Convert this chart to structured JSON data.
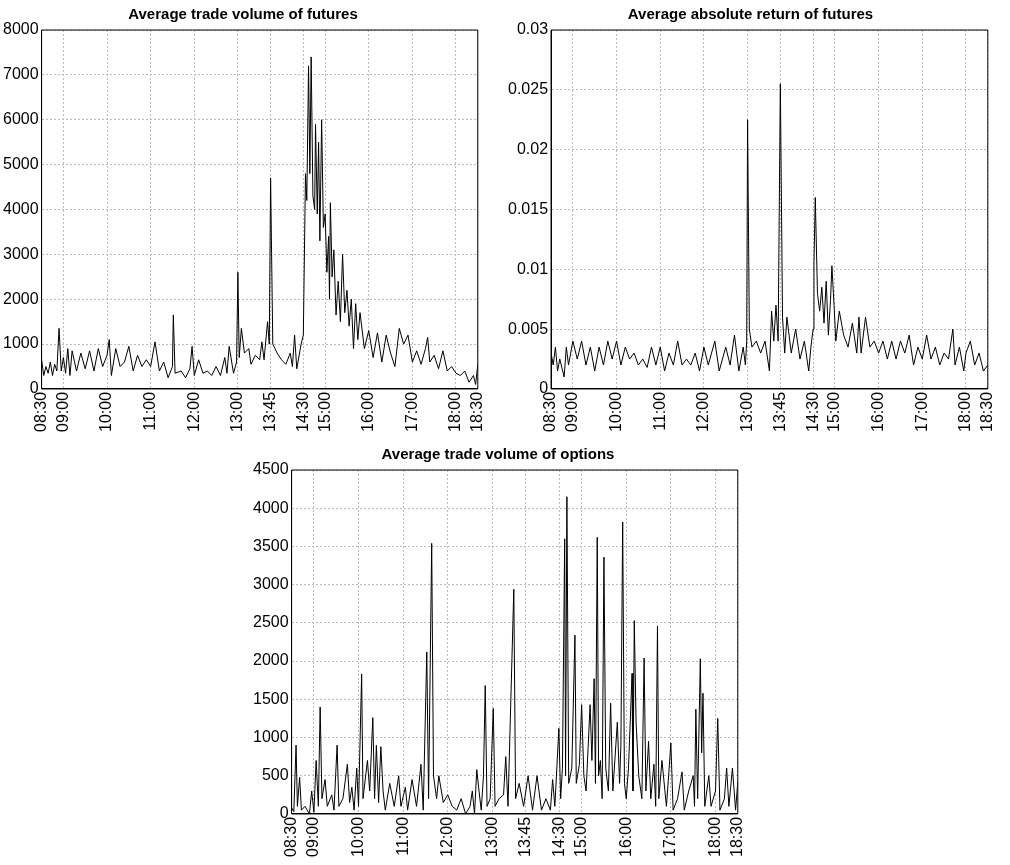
{
  "chart_data": [
    {
      "type": "line",
      "title": "Average trade volume of futures",
      "color": "#000000",
      "grid": true,
      "legend": false,
      "marker": "none",
      "line_style": "solid",
      "xlim": [
        8.5,
        18.5
      ],
      "ylim": [
        0,
        8000
      ],
      "yticks": [
        0,
        1000,
        2000,
        3000,
        4000,
        5000,
        6000,
        7000,
        8000
      ],
      "xticks": [
        {
          "value": 8.5,
          "label": "08:30"
        },
        {
          "value": 9,
          "label": "09:00"
        },
        {
          "value": 10,
          "label": "10:00"
        },
        {
          "value": 11,
          "label": "11:00"
        },
        {
          "value": 12,
          "label": "12:00"
        },
        {
          "value": 13,
          "label": "13:00"
        },
        {
          "value": 13.75,
          "label": "13:45"
        },
        {
          "value": 14.5,
          "label": "14:30"
        },
        {
          "value": 15,
          "label": "15:00"
        },
        {
          "value": 16,
          "label": "16:00"
        },
        {
          "value": 17,
          "label": "17:00"
        },
        {
          "value": 18,
          "label": "18:00"
        },
        {
          "value": 18.5,
          "label": "18:30"
        }
      ],
      "x": [
        8.5,
        8.55,
        8.6,
        8.65,
        8.7,
        8.75,
        8.8,
        8.85,
        8.9,
        8.95,
        9.0,
        9.05,
        9.1,
        9.15,
        9.2,
        9.3,
        9.4,
        9.5,
        9.6,
        9.7,
        9.8,
        9.9,
        10.0,
        10.05,
        10.1,
        10.2,
        10.3,
        10.4,
        10.5,
        10.6,
        10.7,
        10.8,
        10.9,
        11.0,
        11.1,
        11.2,
        11.3,
        11.4,
        11.5,
        11.52,
        11.56,
        11.7,
        11.8,
        11.9,
        11.95,
        12.0,
        12.1,
        12.2,
        12.3,
        12.4,
        12.5,
        12.6,
        12.7,
        12.75,
        12.8,
        12.9,
        12.97,
        13.0,
        13.03,
        13.08,
        13.15,
        13.25,
        13.3,
        13.4,
        13.5,
        13.55,
        13.6,
        13.68,
        13.72,
        13.75,
        13.8,
        13.9,
        14.0,
        14.1,
        14.2,
        14.25,
        14.3,
        14.35,
        14.45,
        14.5,
        14.55,
        14.58,
        14.62,
        14.65,
        14.68,
        14.72,
        14.76,
        14.78,
        14.82,
        14.85,
        14.88,
        14.92,
        14.96,
        15.0,
        15.04,
        15.08,
        15.1,
        15.12,
        15.16,
        15.2,
        15.25,
        15.3,
        15.35,
        15.4,
        15.45,
        15.5,
        15.55,
        15.6,
        15.65,
        15.7,
        15.75,
        15.8,
        15.9,
        16.0,
        16.1,
        16.2,
        16.3,
        16.4,
        16.5,
        16.6,
        16.7,
        16.8,
        16.9,
        17.0,
        17.1,
        17.2,
        17.3,
        17.35,
        17.4,
        17.5,
        17.6,
        17.7,
        17.8,
        17.9,
        18.0,
        18.1,
        18.2,
        18.3,
        18.4,
        18.45,
        18.5
      ],
      "values": [
        650,
        300,
        500,
        350,
        600,
        300,
        550,
        400,
        1350,
        400,
        700,
        350,
        900,
        300,
        850,
        400,
        800,
        450,
        850,
        400,
        900,
        500,
        750,
        1100,
        300,
        900,
        500,
        600,
        950,
        400,
        750,
        500,
        650,
        500,
        1050,
        400,
        600,
        250,
        500,
        1650,
        350,
        400,
        250,
        450,
        950,
        300,
        650,
        350,
        400,
        300,
        500,
        300,
        700,
        350,
        950,
        350,
        600,
        2600,
        700,
        1350,
        800,
        900,
        550,
        750,
        650,
        1050,
        650,
        1500,
        1000,
        4700,
        1000,
        800,
        650,
        550,
        800,
        500,
        1200,
        450,
        1000,
        1200,
        4800,
        4200,
        7200,
        4800,
        7400,
        4300,
        4000,
        5900,
        3900,
        5500,
        3300,
        6000,
        3600,
        3900,
        2600,
        3400,
        2000,
        4150,
        2500,
        3100,
        1650,
        2400,
        1500,
        3000,
        1700,
        2200,
        1400,
        2000,
        900,
        1900,
        1100,
        1700,
        900,
        1300,
        700,
        1250,
        600,
        1200,
        800,
        500,
        1350,
        1000,
        1200,
        600,
        850,
        550,
        900,
        1150,
        600,
        750,
        450,
        850,
        400,
        500,
        350,
        300,
        400,
        150,
        300,
        100,
        550
      ]
    },
    {
      "type": "line",
      "title": "Average absolute return of futures",
      "color": "#000000",
      "grid": true,
      "legend": false,
      "marker": "none",
      "line_style": "solid",
      "xlim": [
        8.5,
        18.5
      ],
      "ylim": [
        0,
        0.03
      ],
      "yticks": [
        0,
        0.005,
        0.01,
        0.015,
        0.02,
        0.025,
        0.03
      ],
      "xticks": [
        {
          "value": 8.5,
          "label": "08:30"
        },
        {
          "value": 9,
          "label": "09:00"
        },
        {
          "value": 10,
          "label": "10:00"
        },
        {
          "value": 11,
          "label": "11:00"
        },
        {
          "value": 12,
          "label": "12:00"
        },
        {
          "value": 13,
          "label": "13:00"
        },
        {
          "value": 13.75,
          "label": "13:45"
        },
        {
          "value": 14.5,
          "label": "14:30"
        },
        {
          "value": 15,
          "label": "15:00"
        },
        {
          "value": 16,
          "label": "16:00"
        },
        {
          "value": 17,
          "label": "17:00"
        },
        {
          "value": 18,
          "label": "18:00"
        },
        {
          "value": 18.5,
          "label": "18:30"
        }
      ],
      "x": [
        8.5,
        8.55,
        8.6,
        8.65,
        8.7,
        8.8,
        8.85,
        8.9,
        9.0,
        9.1,
        9.2,
        9.3,
        9.4,
        9.5,
        9.6,
        9.7,
        9.8,
        9.9,
        10.0,
        10.1,
        10.2,
        10.3,
        10.4,
        10.5,
        10.6,
        10.7,
        10.8,
        10.9,
        11.0,
        11.1,
        11.2,
        11.3,
        11.4,
        11.5,
        11.6,
        11.7,
        11.8,
        11.9,
        12.0,
        12.1,
        12.25,
        12.35,
        12.5,
        12.6,
        12.7,
        12.8,
        12.9,
        12.95,
        12.98,
        13.0,
        13.04,
        13.1,
        13.2,
        13.3,
        13.4,
        13.5,
        13.55,
        13.6,
        13.65,
        13.7,
        13.75,
        13.8,
        13.85,
        13.9,
        14.0,
        14.1,
        14.2,
        14.3,
        14.4,
        14.45,
        14.5,
        14.52,
        14.55,
        14.6,
        14.65,
        14.7,
        14.75,
        14.8,
        14.85,
        14.9,
        14.93,
        14.98,
        15.02,
        15.1,
        15.2,
        15.3,
        15.4,
        15.5,
        15.55,
        15.6,
        15.7,
        15.8,
        15.9,
        16.0,
        16.1,
        16.2,
        16.3,
        16.4,
        16.5,
        16.6,
        16.7,
        16.8,
        16.9,
        17.0,
        17.1,
        17.2,
        17.3,
        17.4,
        17.5,
        17.6,
        17.7,
        17.75,
        17.85,
        17.95,
        18.0,
        18.1,
        18.2,
        18.3,
        18.4,
        18.5
      ],
      "values": [
        0.003,
        0.002,
        0.0035,
        0.0015,
        0.0025,
        0.001,
        0.0035,
        0.002,
        0.004,
        0.0025,
        0.004,
        0.002,
        0.0035,
        0.0015,
        0.0035,
        0.002,
        0.004,
        0.0025,
        0.004,
        0.002,
        0.0035,
        0.0025,
        0.003,
        0.002,
        0.0025,
        0.0018,
        0.0035,
        0.002,
        0.0035,
        0.0015,
        0.003,
        0.002,
        0.004,
        0.002,
        0.0025,
        0.002,
        0.003,
        0.0015,
        0.0035,
        0.002,
        0.004,
        0.0015,
        0.0035,
        0.002,
        0.0045,
        0.0015,
        0.0035,
        0.002,
        0.004,
        0.0225,
        0.005,
        0.0035,
        0.004,
        0.003,
        0.004,
        0.0015,
        0.0065,
        0.004,
        0.007,
        0.004,
        0.0255,
        0.006,
        0.003,
        0.006,
        0.003,
        0.005,
        0.0025,
        0.004,
        0.0015,
        0.0035,
        0.005,
        0.0105,
        0.016,
        0.008,
        0.0065,
        0.0085,
        0.0055,
        0.009,
        0.0045,
        0.0075,
        0.0103,
        0.007,
        0.004,
        0.0065,
        0.0045,
        0.0035,
        0.0055,
        0.003,
        0.006,
        0.003,
        0.006,
        0.0035,
        0.004,
        0.003,
        0.004,
        0.0025,
        0.004,
        0.0025,
        0.004,
        0.003,
        0.0045,
        0.002,
        0.0035,
        0.0025,
        0.0045,
        0.0025,
        0.0035,
        0.002,
        0.003,
        0.0025,
        0.005,
        0.002,
        0.0035,
        0.0015,
        0.003,
        0.004,
        0.002,
        0.003,
        0.0015,
        0.002
      ]
    },
    {
      "type": "line",
      "title": "Average trade volume of options",
      "color": "#000000",
      "grid": true,
      "legend": false,
      "marker": "none",
      "line_style": "solid",
      "xlim": [
        8.5,
        18.5
      ],
      "ylim": [
        0,
        4500
      ],
      "yticks": [
        0,
        500,
        1000,
        1500,
        2000,
        2500,
        3000,
        3500,
        4000,
        4500
      ],
      "xticks": [
        {
          "value": 8.5,
          "label": "08:30"
        },
        {
          "value": 9,
          "label": "09:00"
        },
        {
          "value": 10,
          "label": "10:00"
        },
        {
          "value": 11,
          "label": "11:00"
        },
        {
          "value": 12,
          "label": "12:00"
        },
        {
          "value": 13,
          "label": "13:00"
        },
        {
          "value": 13.75,
          "label": "13:45"
        },
        {
          "value": 14.5,
          "label": "14:30"
        },
        {
          "value": 15,
          "label": "15:00"
        },
        {
          "value": 16,
          "label": "16:00"
        },
        {
          "value": 17,
          "label": "17:00"
        },
        {
          "value": 18,
          "label": "18:00"
        },
        {
          "value": 18.5,
          "label": "18:30"
        }
      ],
      "x": [
        8.5,
        8.55,
        8.6,
        8.63,
        8.68,
        8.72,
        8.8,
        8.9,
        8.95,
        9.0,
        9.05,
        9.1,
        9.14,
        9.18,
        9.25,
        9.3,
        9.4,
        9.45,
        9.52,
        9.56,
        9.65,
        9.75,
        9.8,
        9.85,
        9.9,
        9.96,
        10.0,
        10.07,
        10.1,
        10.2,
        10.25,
        10.32,
        10.36,
        10.4,
        10.45,
        10.5,
        10.55,
        10.6,
        10.7,
        10.8,
        10.9,
        10.95,
        11.05,
        11.1,
        11.2,
        11.3,
        11.4,
        11.45,
        11.53,
        11.57,
        11.64,
        11.68,
        11.75,
        11.8,
        11.9,
        12.0,
        12.1,
        12.2,
        12.3,
        12.4,
        12.5,
        12.55,
        12.6,
        12.65,
        12.7,
        12.75,
        12.8,
        12.84,
        12.88,
        12.95,
        13.02,
        13.06,
        13.15,
        13.25,
        13.3,
        13.35,
        13.48,
        13.52,
        13.6,
        13.7,
        13.8,
        13.9,
        14.0,
        14.1,
        14.2,
        14.3,
        14.35,
        14.4,
        14.49,
        14.53,
        14.57,
        14.62,
        14.64,
        14.67,
        14.71,
        14.78,
        14.85,
        14.88,
        14.95,
        15.0,
        15.05,
        15.1,
        15.19,
        15.23,
        15.28,
        15.31,
        15.35,
        15.38,
        15.42,
        15.46,
        15.5,
        15.54,
        15.6,
        15.65,
        15.7,
        15.8,
        15.85,
        15.88,
        15.92,
        15.96,
        16.0,
        16.05,
        16.13,
        16.15,
        16.18,
        16.22,
        16.28,
        16.35,
        16.4,
        16.44,
        16.5,
        16.55,
        16.62,
        16.66,
        16.7,
        16.73,
        16.8,
        16.9,
        16.95,
        17.0,
        17.05,
        17.15,
        17.25,
        17.3,
        17.4,
        17.5,
        17.53,
        17.56,
        17.6,
        17.66,
        17.69,
        17.72,
        17.76,
        17.85,
        17.9,
        18.0,
        18.05,
        18.1,
        18.2,
        18.25,
        18.3,
        18.38,
        18.45,
        18.5
      ],
      "values": [
        80,
        30,
        900,
        100,
        480,
        50,
        100,
        0,
        300,
        20,
        700,
        100,
        1400,
        200,
        450,
        100,
        250,
        50,
        900,
        100,
        200,
        650,
        150,
        350,
        50,
        600,
        100,
        1830,
        200,
        700,
        300,
        1260,
        200,
        900,
        150,
        880,
        300,
        50,
        400,
        100,
        500,
        100,
        350,
        50,
        450,
        100,
        650,
        50,
        2120,
        200,
        3540,
        500,
        200,
        500,
        150,
        250,
        100,
        50,
        200,
        0,
        100,
        300,
        0,
        580,
        300,
        50,
        500,
        1680,
        100,
        200,
        1380,
        100,
        200,
        250,
        750,
        100,
        2940,
        200,
        400,
        100,
        500,
        50,
        500,
        50,
        200,
        50,
        450,
        100,
        1120,
        200,
        600,
        3600,
        500,
        4150,
        400,
        600,
        2340,
        400,
        650,
        1430,
        500,
        300,
        1430,
        700,
        1770,
        400,
        3620,
        500,
        700,
        200,
        3360,
        600,
        300,
        1450,
        300,
        1200,
        400,
        900,
        3820,
        400,
        200,
        600,
        1840,
        300,
        2530,
        1200,
        500,
        200,
        2040,
        300,
        950,
        200,
        650,
        100,
        2460,
        200,
        700,
        100,
        500,
        930,
        50,
        200,
        550,
        50,
        300,
        500,
        100,
        1370,
        200,
        2030,
        800,
        1580,
        100,
        500,
        100,
        300,
        1250,
        50,
        200,
        600,
        100,
        600,
        50,
        420
      ]
    }
  ]
}
